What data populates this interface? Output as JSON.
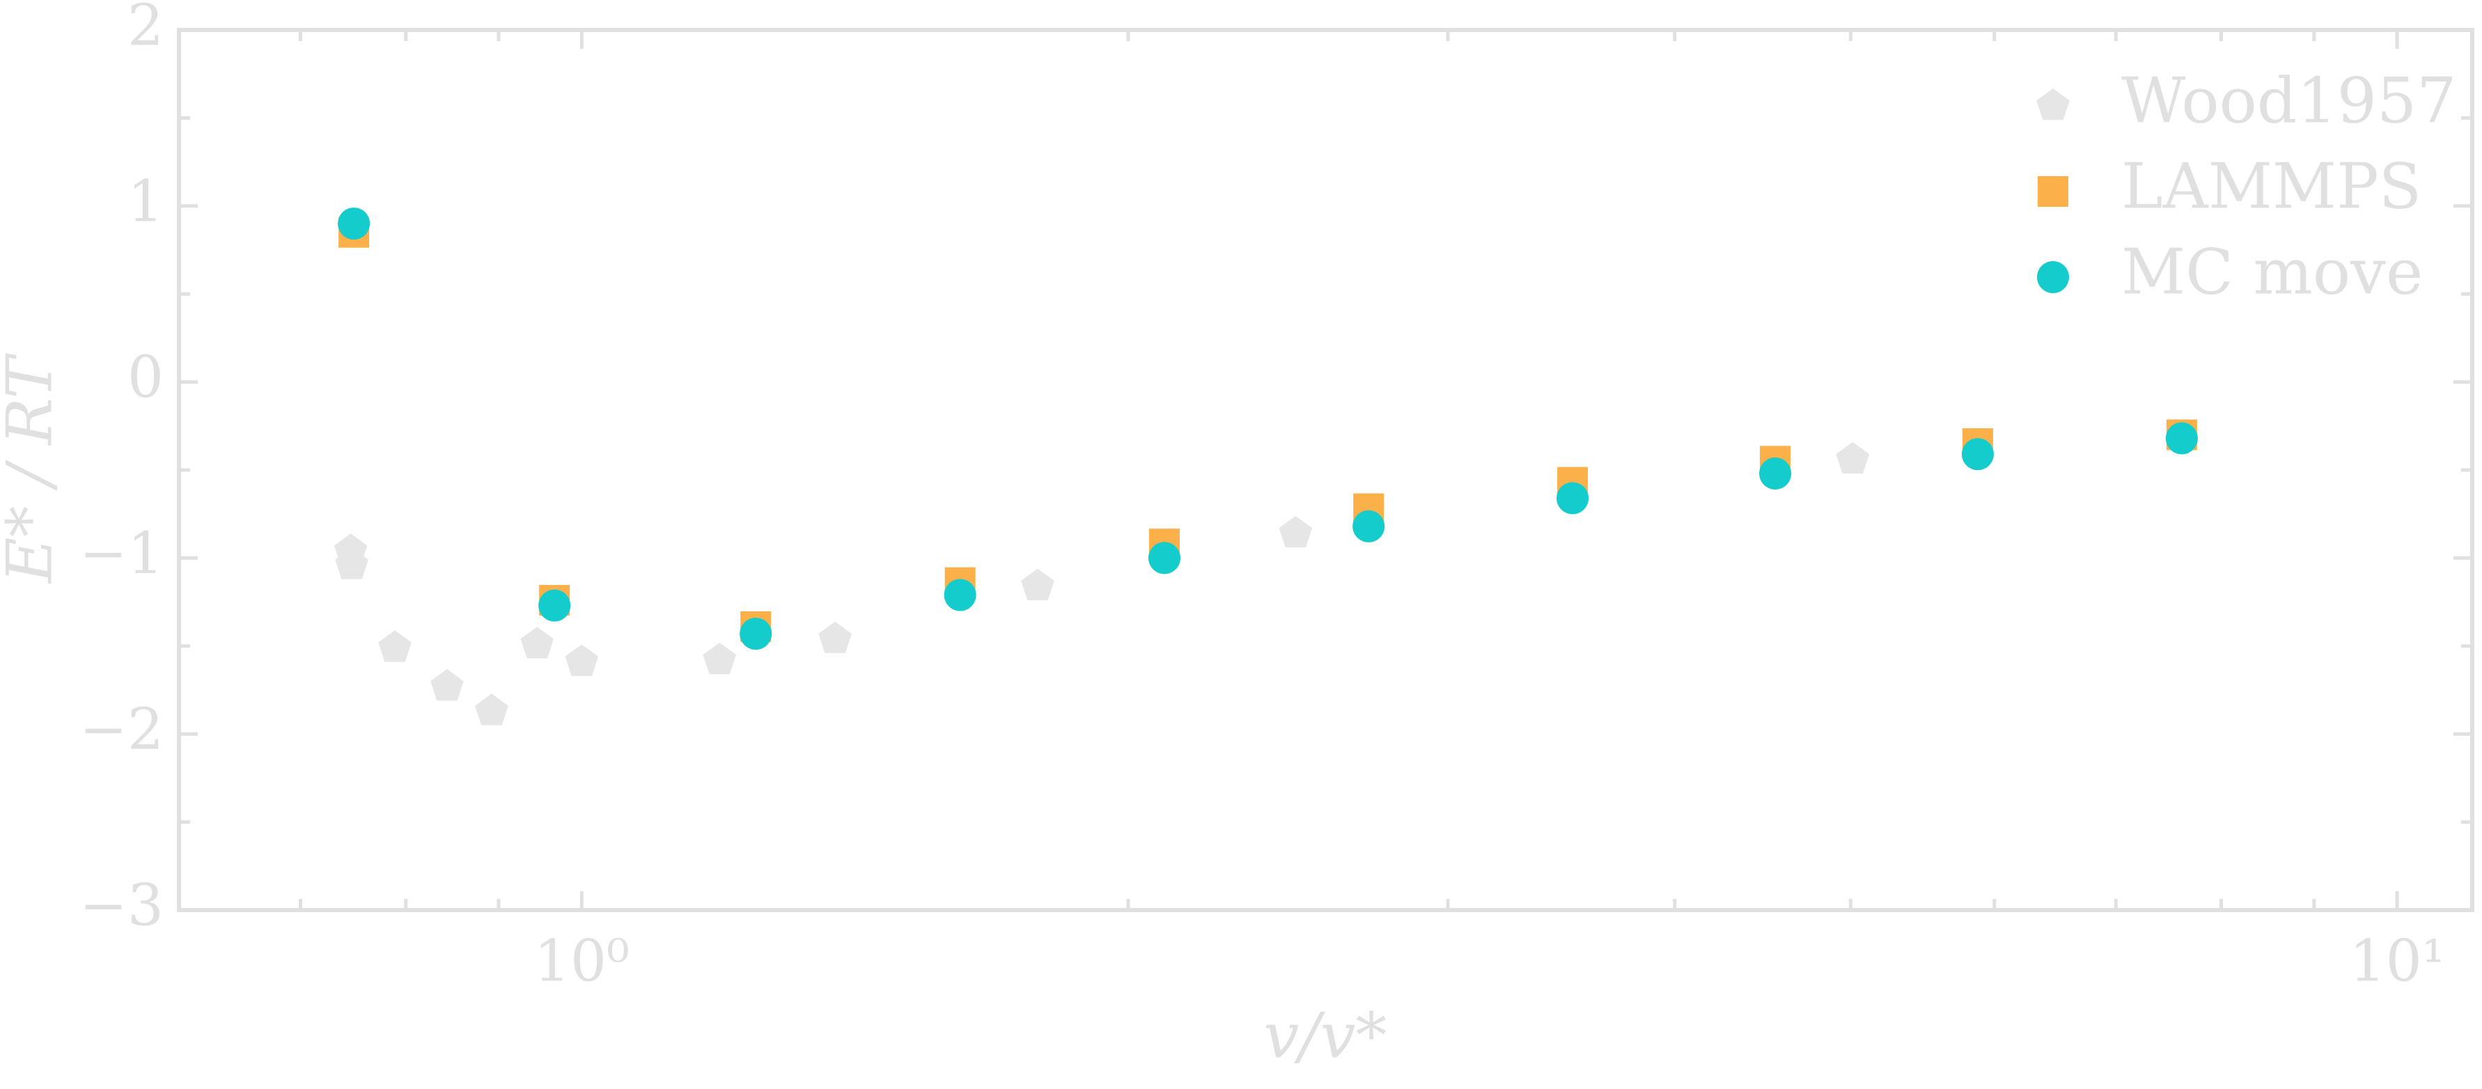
{
  "chart_data": {
    "type": "scatter",
    "xlabel": "v/v*",
    "ylabel": "E* / RT",
    "xscale": "log",
    "xlim": [
      0.6,
      11
    ],
    "ylim": [
      -3,
      2
    ],
    "xticks": [
      {
        "value": 1,
        "label": "10⁰"
      },
      {
        "value": 10,
        "label": "10¹"
      }
    ],
    "xminorticks": [
      0.7,
      0.8,
      0.9,
      2,
      3,
      4,
      5,
      6,
      7,
      8,
      9
    ],
    "yticks": [
      {
        "value": -3,
        "label": "−3"
      },
      {
        "value": -2,
        "label": "−2"
      },
      {
        "value": -1,
        "label": "−1"
      },
      0,
      1,
      2
    ],
    "yminorticks": [
      -2.5,
      -1.5,
      -0.5,
      0.5,
      1.5
    ],
    "legend": "upper right",
    "series": [
      {
        "name": "Wood1957",
        "color": "#e6e6e6",
        "marker": "pentagon",
        "x": [
          0.746,
          0.747,
          0.789,
          0.843,
          0.892,
          0.945,
          1.0,
          1.191,
          1.379,
          1.783,
          2.473,
          5.013
        ],
        "values": [
          -0.96,
          -1.04,
          -1.51,
          -1.73,
          -1.87,
          -1.49,
          -1.59,
          -1.58,
          -1.46,
          -1.16,
          -0.86,
          -0.44
        ]
      },
      {
        "name": "LAMMPS",
        "color": "#fbb04a",
        "marker": "square",
        "x": [
          0.749,
          0.966,
          1.247,
          1.616,
          2.094,
          2.713,
          3.514,
          4.544,
          5.875,
          7.61
        ],
        "values": [
          0.85,
          -1.24,
          -1.39,
          -1.14,
          -0.92,
          -0.72,
          -0.57,
          -0.45,
          -0.35,
          -0.3
        ]
      },
      {
        "name": "MC move",
        "color": "#14cccc",
        "marker": "circle",
        "x": [
          0.749,
          0.966,
          1.247,
          1.616,
          2.094,
          2.713,
          3.514,
          4.544,
          5.875,
          7.61
        ],
        "values": [
          0.9,
          -1.27,
          -1.43,
          -1.21,
          -1.0,
          -0.82,
          -0.66,
          -0.52,
          -0.41,
          -0.32
        ]
      }
    ]
  }
}
